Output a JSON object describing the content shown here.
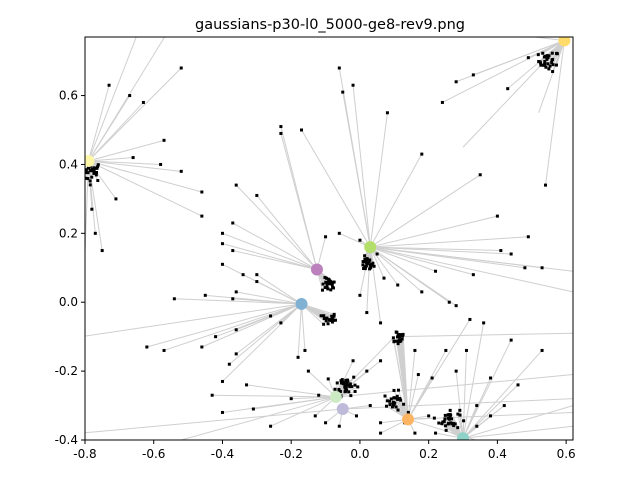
{
  "chart_data": {
    "type": "scatter",
    "title": "gaussians-p30-l0_5000-ge8-rev9.png",
    "xlabel": "",
    "ylabel": "",
    "xlim": [
      -0.8,
      0.62
    ],
    "ylim": [
      -0.4,
      0.77
    ],
    "xticks": [
      "-0.8",
      "-0.6",
      "-0.4",
      "-0.2",
      "0.0",
      "0.2",
      "0.4",
      "0.6"
    ],
    "xtick_values": [
      -0.8,
      -0.6,
      -0.4,
      -0.2,
      0.0,
      0.2,
      0.4,
      0.6
    ],
    "yticks": [
      "-0.4",
      "-0.2",
      "0.0",
      "0.2",
      "0.4",
      "0.6"
    ],
    "ytick_values": [
      -0.4,
      -0.2,
      0.0,
      0.2,
      0.4,
      0.6
    ],
    "grid": false,
    "clusters": [
      {
        "center": [
          -0.78,
          0.38
        ],
        "count": 30,
        "spread": 0.015
      },
      {
        "center": [
          0.55,
          0.7
        ],
        "count": 30,
        "spread": 0.015
      },
      {
        "center": [
          0.02,
          0.11
        ],
        "count": 26,
        "spread": 0.01
      },
      {
        "center": [
          -0.09,
          0.05
        ],
        "count": 22,
        "spread": 0.01
      },
      {
        "center": [
          -0.09,
          -0.05
        ],
        "count": 20,
        "spread": 0.01
      },
      {
        "center": [
          0.11,
          -0.1
        ],
        "count": 22,
        "spread": 0.012
      },
      {
        "center": [
          -0.04,
          -0.24
        ],
        "count": 40,
        "spread": 0.015
      },
      {
        "center": [
          0.1,
          -0.29
        ],
        "count": 26,
        "spread": 0.015
      },
      {
        "center": [
          0.26,
          -0.34
        ],
        "count": 30,
        "spread": 0.015
      }
    ],
    "scattered_points": [
      [
        -0.73,
        0.63
      ],
      [
        -0.67,
        0.6
      ],
      [
        -0.63,
        0.58
      ],
      [
        -0.52,
        0.68
      ],
      [
        -0.57,
        0.47
      ],
      [
        -0.58,
        0.4
      ],
      [
        -0.66,
        0.42
      ],
      [
        -0.71,
        0.3
      ],
      [
        -0.78,
        0.27
      ],
      [
        -0.75,
        0.15
      ],
      [
        -0.77,
        0.2
      ],
      [
        -0.52,
        0.38
      ],
      [
        -0.46,
        0.32
      ],
      [
        -0.36,
        0.34
      ],
      [
        -0.3,
        0.31
      ],
      [
        -0.23,
        0.51
      ],
      [
        -0.46,
        0.25
      ],
      [
        -0.23,
        0.49
      ],
      [
        -0.17,
        0.5
      ],
      [
        -0.06,
        0.68
      ],
      [
        -0.05,
        0.61
      ],
      [
        -0.02,
        0.63
      ],
      [
        0.08,
        0.55
      ],
      [
        0.18,
        0.43
      ],
      [
        0.28,
        0.64
      ],
      [
        0.33,
        0.66
      ],
      [
        0.24,
        0.58
      ],
      [
        0.42,
        0.78
      ],
      [
        0.43,
        0.62
      ],
      [
        0.49,
        0.71
      ],
      [
        0.35,
        0.37
      ],
      [
        0.4,
        0.25
      ],
      [
        0.49,
        0.19
      ],
      [
        0.54,
        0.34
      ],
      [
        0.41,
        0.15
      ],
      [
        0.44,
        0.14
      ],
      [
        0.48,
        0.1
      ],
      [
        0.53,
        0.1
      ],
      [
        0.33,
        0.08
      ],
      [
        0.28,
        -0.01
      ],
      [
        0.36,
        -0.06
      ],
      [
        0.44,
        -0.11
      ],
      [
        0.53,
        -0.14
      ],
      [
        0.38,
        -0.22
      ],
      [
        0.46,
        -0.24
      ],
      [
        -0.37,
        0.23
      ],
      [
        -0.4,
        0.2
      ],
      [
        -0.4,
        0.17
      ],
      [
        -0.37,
        0.15
      ],
      [
        -0.4,
        0.11
      ],
      [
        -0.34,
        0.08
      ],
      [
        -0.3,
        0.08
      ],
      [
        -0.3,
        0.06
      ],
      [
        -0.37,
        0.01
      ],
      [
        -0.45,
        0.02
      ],
      [
        -0.54,
        0.01
      ],
      [
        -0.62,
        -0.13
      ],
      [
        -0.57,
        -0.14
      ],
      [
        -0.42,
        -0.1
      ],
      [
        -0.36,
        -0.08
      ],
      [
        -0.36,
        0.03
      ],
      [
        -0.26,
        -0.04
      ],
      [
        -0.23,
        -0.06
      ],
      [
        -0.46,
        -0.13
      ],
      [
        -0.36,
        -0.15
      ],
      [
        -0.38,
        -0.18
      ],
      [
        -0.33,
        -0.24
      ],
      [
        -0.4,
        -0.23
      ],
      [
        -0.43,
        -0.27
      ],
      [
        -0.4,
        -0.32
      ],
      [
        -0.31,
        -0.31
      ],
      [
        -0.26,
        -0.36
      ],
      [
        -0.2,
        -0.28
      ],
      [
        -0.18,
        -0.16
      ],
      [
        -0.16,
        -0.14
      ],
      [
        -0.15,
        -0.2
      ],
      [
        -0.12,
        -0.27
      ],
      [
        -0.13,
        -0.33
      ],
      [
        -0.1,
        -0.35
      ],
      [
        -0.81,
        -0.12
      ],
      [
        -0.1,
        0.19
      ],
      [
        -0.06,
        0.2
      ],
      [
        0.0,
        0.18
      ],
      [
        0.05,
        0.14
      ],
      [
        0.07,
        0.07
      ],
      [
        0.11,
        0.05
      ],
      [
        0.18,
        0.03
      ],
      [
        0.22,
        0.09
      ],
      [
        0.26,
        0.0
      ],
      [
        0.32,
        -0.05
      ],
      [
        0.0,
        0.02
      ],
      [
        0.02,
        -0.03
      ],
      [
        0.06,
        -0.06
      ],
      [
        0.16,
        -0.14
      ],
      [
        0.25,
        -0.14
      ],
      [
        0.31,
        -0.14
      ],
      [
        0.28,
        -0.2
      ],
      [
        0.21,
        -0.22
      ],
      [
        0.17,
        -0.21
      ],
      [
        0.06,
        -0.17
      ],
      [
        0.02,
        -0.2
      ],
      [
        -0.02,
        -0.17
      ],
      [
        0.13,
        -0.35
      ],
      [
        0.16,
        -0.38
      ],
      [
        0.2,
        -0.33
      ],
      [
        0.22,
        -0.38
      ],
      [
        0.34,
        -0.3
      ],
      [
        0.34,
        -0.36
      ],
      [
        0.38,
        -0.33
      ],
      [
        0.42,
        -0.3
      ],
      [
        -0.06,
        -0.36
      ],
      [
        -0.01,
        -0.33
      ],
      [
        0.03,
        -0.3
      ],
      [
        0.06,
        -0.35
      ],
      [
        0.06,
        -0.38
      ]
    ],
    "hubs": [
      {
        "name": "hub-yellow-left",
        "x": -0.79,
        "y": 0.41,
        "color": "#fff7a8"
      },
      {
        "name": "hub-yellow-right",
        "x": 0.595,
        "y": 0.76,
        "color": "#ffdb6b"
      },
      {
        "name": "hub-green",
        "x": 0.03,
        "y": 0.16,
        "color": "#b3de69"
      },
      {
        "name": "hub-purple",
        "x": -0.125,
        "y": 0.095,
        "color": "#bc80bd"
      },
      {
        "name": "hub-blue",
        "x": -0.17,
        "y": -0.005,
        "color": "#80b1d3"
      },
      {
        "name": "hub-lightgreen",
        "x": -0.07,
        "y": -0.275,
        "color": "#ccebc5"
      },
      {
        "name": "hub-lavender",
        "x": -0.05,
        "y": -0.31,
        "color": "#bebada"
      },
      {
        "name": "hub-orange",
        "x": 0.14,
        "y": -0.34,
        "color": "#fdb462"
      },
      {
        "name": "hub-teal",
        "x": 0.3,
        "y": -0.395,
        "color": "#8dd3c7"
      }
    ]
  }
}
